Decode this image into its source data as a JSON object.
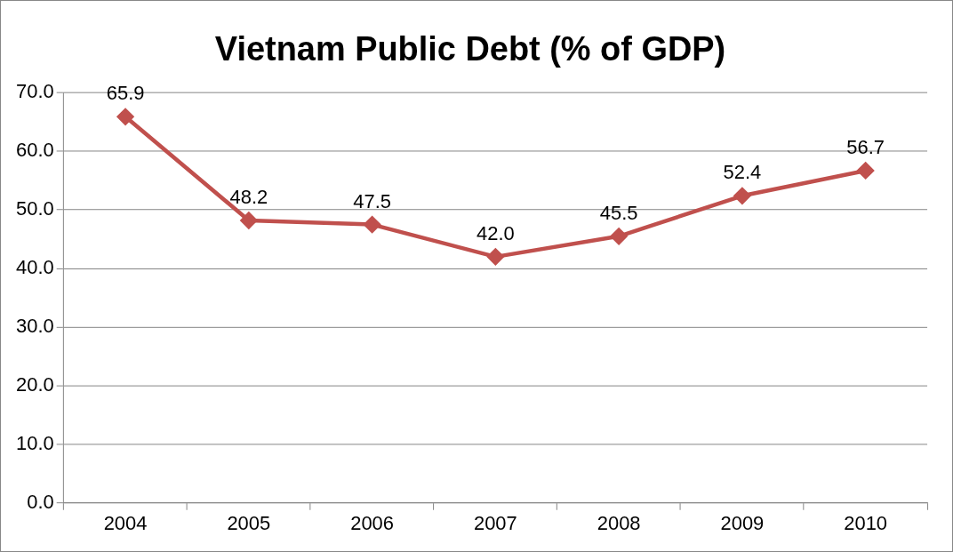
{
  "chart_data": {
    "type": "line",
    "title": "Vietnam Public Debt (% of GDP)",
    "categories": [
      "2004",
      "2005",
      "2006",
      "2007",
      "2008",
      "2009",
      "2010"
    ],
    "series": [
      {
        "color": "#c0504d",
        "values": [
          65.9,
          48.2,
          47.5,
          42.0,
          45.5,
          52.4,
          56.7
        ],
        "value_labels": [
          "65.9",
          "48.2",
          "47.5",
          "42.0",
          "45.5",
          "52.4",
          "56.7"
        ]
      }
    ],
    "ylim": [
      0,
      70
    ],
    "yticks": [
      {
        "value": 0,
        "label": "0.0"
      },
      {
        "value": 10,
        "label": "10.0"
      },
      {
        "value": 20,
        "label": "20.0"
      },
      {
        "value": 30,
        "label": "30.0"
      },
      {
        "value": 40,
        "label": "40.0"
      },
      {
        "value": 50,
        "label": "50.0"
      },
      {
        "value": 60,
        "label": "60.0"
      },
      {
        "value": 70,
        "label": "70.0"
      }
    ],
    "grid": "y",
    "legend": false,
    "marker": "diamond",
    "line_style": "solid"
  }
}
